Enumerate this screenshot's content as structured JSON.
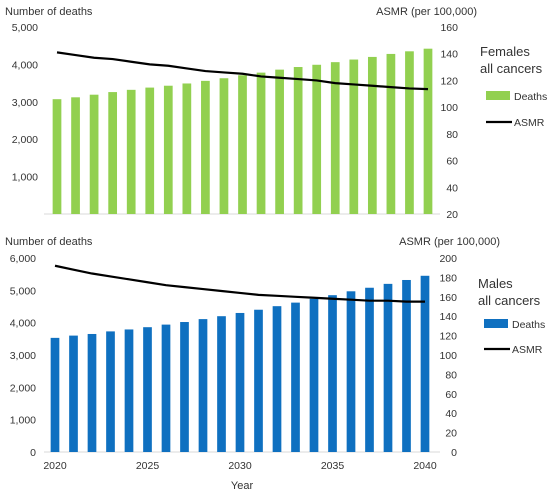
{
  "chart_data": [
    {
      "type": "bar",
      "panel": "females",
      "title": "Females all cancers",
      "title_lines": [
        "Females",
        "all cancers"
      ],
      "ylabel": "Number of deaths",
      "y2label": "ASMR (per 100,000)",
      "ylim": [
        0,
        5000
      ],
      "y2lim": [
        20,
        160
      ],
      "yticks": [
        "1,000",
        "2,000",
        "3,000",
        "4,000",
        "5,000"
      ],
      "y2ticks": [
        "20",
        "40",
        "60",
        "80",
        "100",
        "120",
        "140",
        "160"
      ],
      "x": [
        2020,
        2021,
        2022,
        2023,
        2024,
        2025,
        2026,
        2027,
        2028,
        2029,
        2030,
        2031,
        2032,
        2033,
        2034,
        2035,
        2036,
        2037,
        2038,
        2039,
        2040
      ],
      "series": [
        {
          "name": "Deaths",
          "kind": "bar",
          "axis": "left",
          "values": [
            3070,
            3120,
            3190,
            3260,
            3320,
            3380,
            3430,
            3490,
            3560,
            3630,
            3710,
            3780,
            3860,
            3930,
            3990,
            4060,
            4130,
            4200,
            4280,
            4350,
            4420
          ]
        },
        {
          "name": "ASMR",
          "kind": "line",
          "axis": "right",
          "values": [
            141,
            139,
            137,
            136,
            134,
            132,
            131,
            129,
            127,
            126,
            125,
            123,
            122,
            121,
            120,
            118,
            117,
            116,
            115,
            114,
            113.5
          ]
        }
      ],
      "colors": {
        "bars": "#92d050",
        "line": "#000000"
      },
      "legend_position": "right"
    },
    {
      "type": "bar",
      "panel": "males",
      "title": "Males all cancers",
      "title_lines": [
        "Males",
        "all cancers"
      ],
      "ylabel": "Number of deaths",
      "y2label": "ASMR (per 100,000)",
      "xlabel": "Year",
      "ylim": [
        0,
        6000
      ],
      "y2lim": [
        0,
        200
      ],
      "yticks": [
        "0",
        "1,000",
        "2,000",
        "3,000",
        "4,000",
        "5,000",
        "6,000"
      ],
      "y2ticks": [
        "0",
        "20",
        "40",
        "60",
        "80",
        "100",
        "120",
        "140",
        "160",
        "180",
        "200"
      ],
      "xticks": [
        "2020",
        "2025",
        "2030",
        "2035",
        "2040"
      ],
      "x": [
        2020,
        2021,
        2022,
        2023,
        2024,
        2025,
        2026,
        2027,
        2028,
        2029,
        2030,
        2031,
        2032,
        2033,
        2034,
        2035,
        2036,
        2037,
        2038,
        2039,
        2040
      ],
      "series": [
        {
          "name": "Deaths",
          "kind": "bar",
          "axis": "left",
          "values": [
            3530,
            3600,
            3650,
            3730,
            3790,
            3860,
            3940,
            4020,
            4110,
            4200,
            4300,
            4400,
            4510,
            4620,
            4740,
            4850,
            4970,
            5080,
            5200,
            5320,
            5450
          ]
        },
        {
          "name": "ASMR",
          "kind": "line",
          "axis": "right",
          "values": [
            192,
            188,
            184,
            181,
            178,
            175,
            172,
            170,
            168,
            166,
            164,
            162,
            161,
            160,
            159,
            158,
            157,
            156,
            156,
            155,
            155
          ]
        }
      ],
      "colors": {
        "bars": "#0f70c0",
        "line": "#000000"
      },
      "legend_position": "right"
    }
  ]
}
